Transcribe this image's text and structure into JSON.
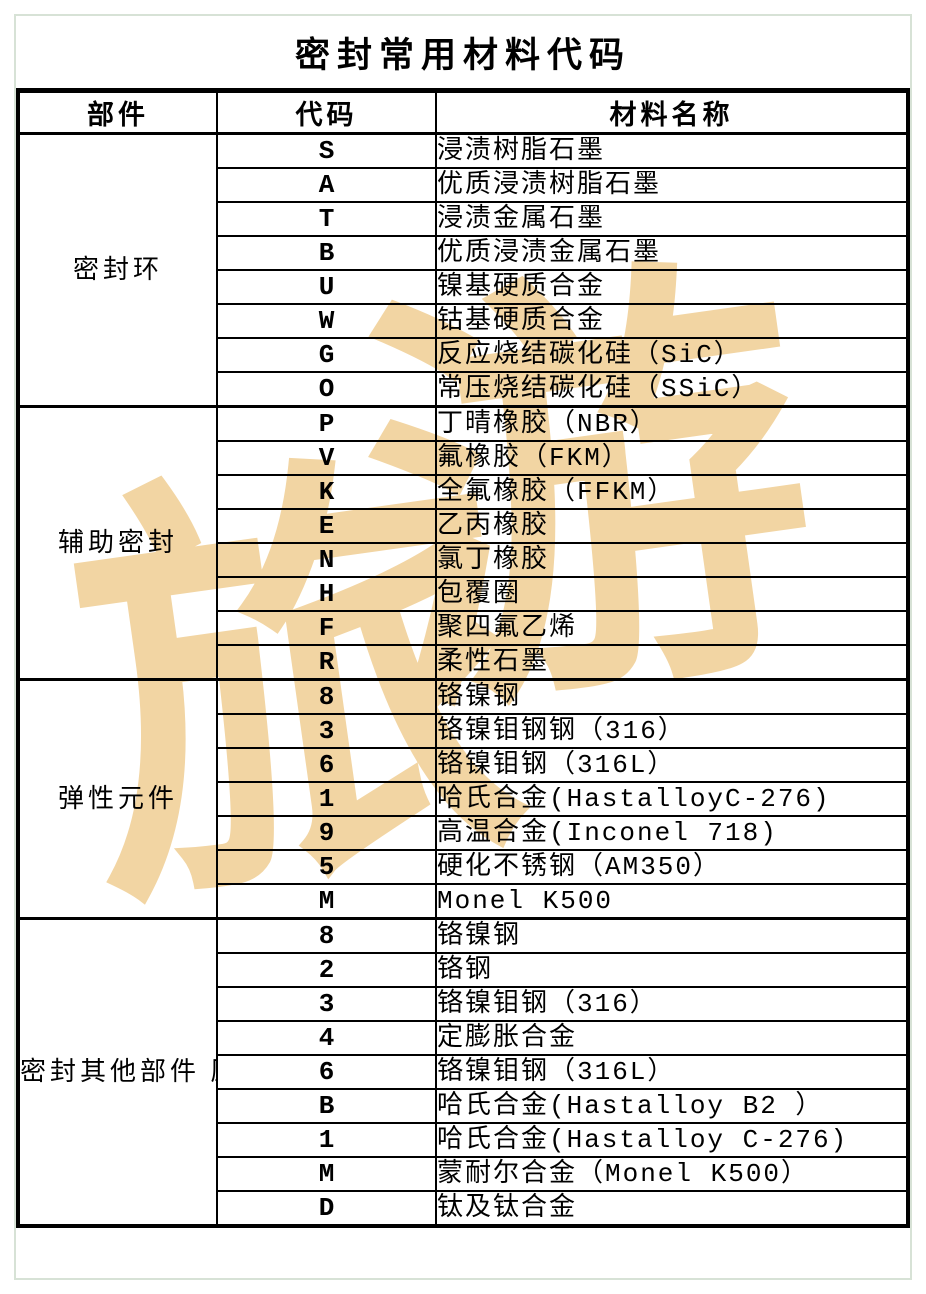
{
  "title": "密封常用材料代码",
  "columns": [
    "部件",
    "代码",
    "材料名称"
  ],
  "sections": [
    {
      "part": "密封环",
      "rows": [
        [
          "S",
          "浸渍树脂石墨"
        ],
        [
          "A",
          "优质浸渍树脂石墨"
        ],
        [
          "T",
          "浸渍金属石墨"
        ],
        [
          "B",
          "优质浸渍金属石墨"
        ],
        [
          "U",
          "镍基硬质合金"
        ],
        [
          "W",
          "钴基硬质合金"
        ],
        [
          "G",
          "反应烧结碳化硅（SiC）"
        ],
        [
          "O",
          "常压烧结碳化硅（SSiC）"
        ]
      ]
    },
    {
      "part": "辅助密封",
      "rows": [
        [
          "P",
          "丁晴橡胶（NBR）"
        ],
        [
          "V",
          "氟橡胶（FKM）"
        ],
        [
          "K",
          "全氟橡胶（FFKM）"
        ],
        [
          "E",
          "乙丙橡胶"
        ],
        [
          "N",
          "氯丁橡胶"
        ],
        [
          "H",
          "包覆圈"
        ],
        [
          "F",
          "聚四氟乙烯"
        ],
        [
          "R",
          "柔性石墨"
        ]
      ]
    },
    {
      "part": "弹性元件",
      "rows": [
        [
          "8",
          "铬镍钢"
        ],
        [
          "3",
          "铬镍钼钢钢（316）"
        ],
        [
          "6",
          "铬镍钼钢（316L）"
        ],
        [
          "1",
          "哈氏合金(HastalloyC-276)"
        ],
        [
          "9",
          "高温合金(Inconel 718)"
        ],
        [
          "5",
          "硬化不锈钢（AM350）"
        ],
        [
          "M",
          "Monel K500"
        ]
      ]
    },
    {
      "part": "密封其他部件\n压盖和轴套",
      "rows": [
        [
          "8",
          "铬镍钢"
        ],
        [
          "2",
          "铬钢"
        ],
        [
          "3",
          "铬镍钼钢（316）"
        ],
        [
          "4",
          "定膨胀合金"
        ],
        [
          "6",
          "铬镍钼钢（316L）"
        ],
        [
          "B",
          "哈氏合金(Hastalloy B2 ）"
        ],
        [
          "1",
          "哈氏合金(Hastalloy C-276)"
        ],
        [
          "M",
          "蒙耐尔合金（Monel K500）"
        ],
        [
          "D",
          "钛及钛合金"
        ]
      ]
    }
  ],
  "watermark": {
    "chars": [
      "旅",
      "游"
    ],
    "color": "#f2d5a3"
  },
  "colors": {
    "frame_border": "#d7e2d6",
    "grid": "#000000",
    "background": "#ffffff"
  }
}
